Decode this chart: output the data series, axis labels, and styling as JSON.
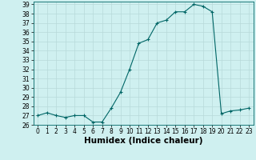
{
  "x": [
    0,
    1,
    2,
    3,
    4,
    5,
    6,
    7,
    8,
    9,
    10,
    11,
    12,
    13,
    14,
    15,
    16,
    17,
    18,
    19,
    20,
    21,
    22,
    23
  ],
  "y": [
    27.0,
    27.3,
    27.0,
    26.8,
    27.0,
    27.0,
    26.3,
    26.3,
    27.8,
    29.5,
    32.0,
    34.8,
    35.2,
    37.0,
    37.3,
    38.2,
    38.2,
    39.0,
    38.8,
    38.2,
    27.2,
    27.5,
    27.6,
    27.8
  ],
  "xlabel": "Humidex (Indice chaleur)",
  "ylim": [
    26,
    39
  ],
  "xlim": [
    -0.5,
    23.5
  ],
  "yticks": [
    26,
    27,
    28,
    29,
    30,
    31,
    32,
    33,
    34,
    35,
    36,
    37,
    38,
    39
  ],
  "xticks": [
    0,
    1,
    2,
    3,
    4,
    5,
    6,
    7,
    8,
    9,
    10,
    11,
    12,
    13,
    14,
    15,
    16,
    17,
    18,
    19,
    20,
    21,
    22,
    23
  ],
  "line_color": "#006666",
  "marker": "+",
  "bg_color": "#cff0f0",
  "grid_color": "#b8dada",
  "tick_fontsize": 5.5,
  "xlabel_fontsize": 7.5
}
